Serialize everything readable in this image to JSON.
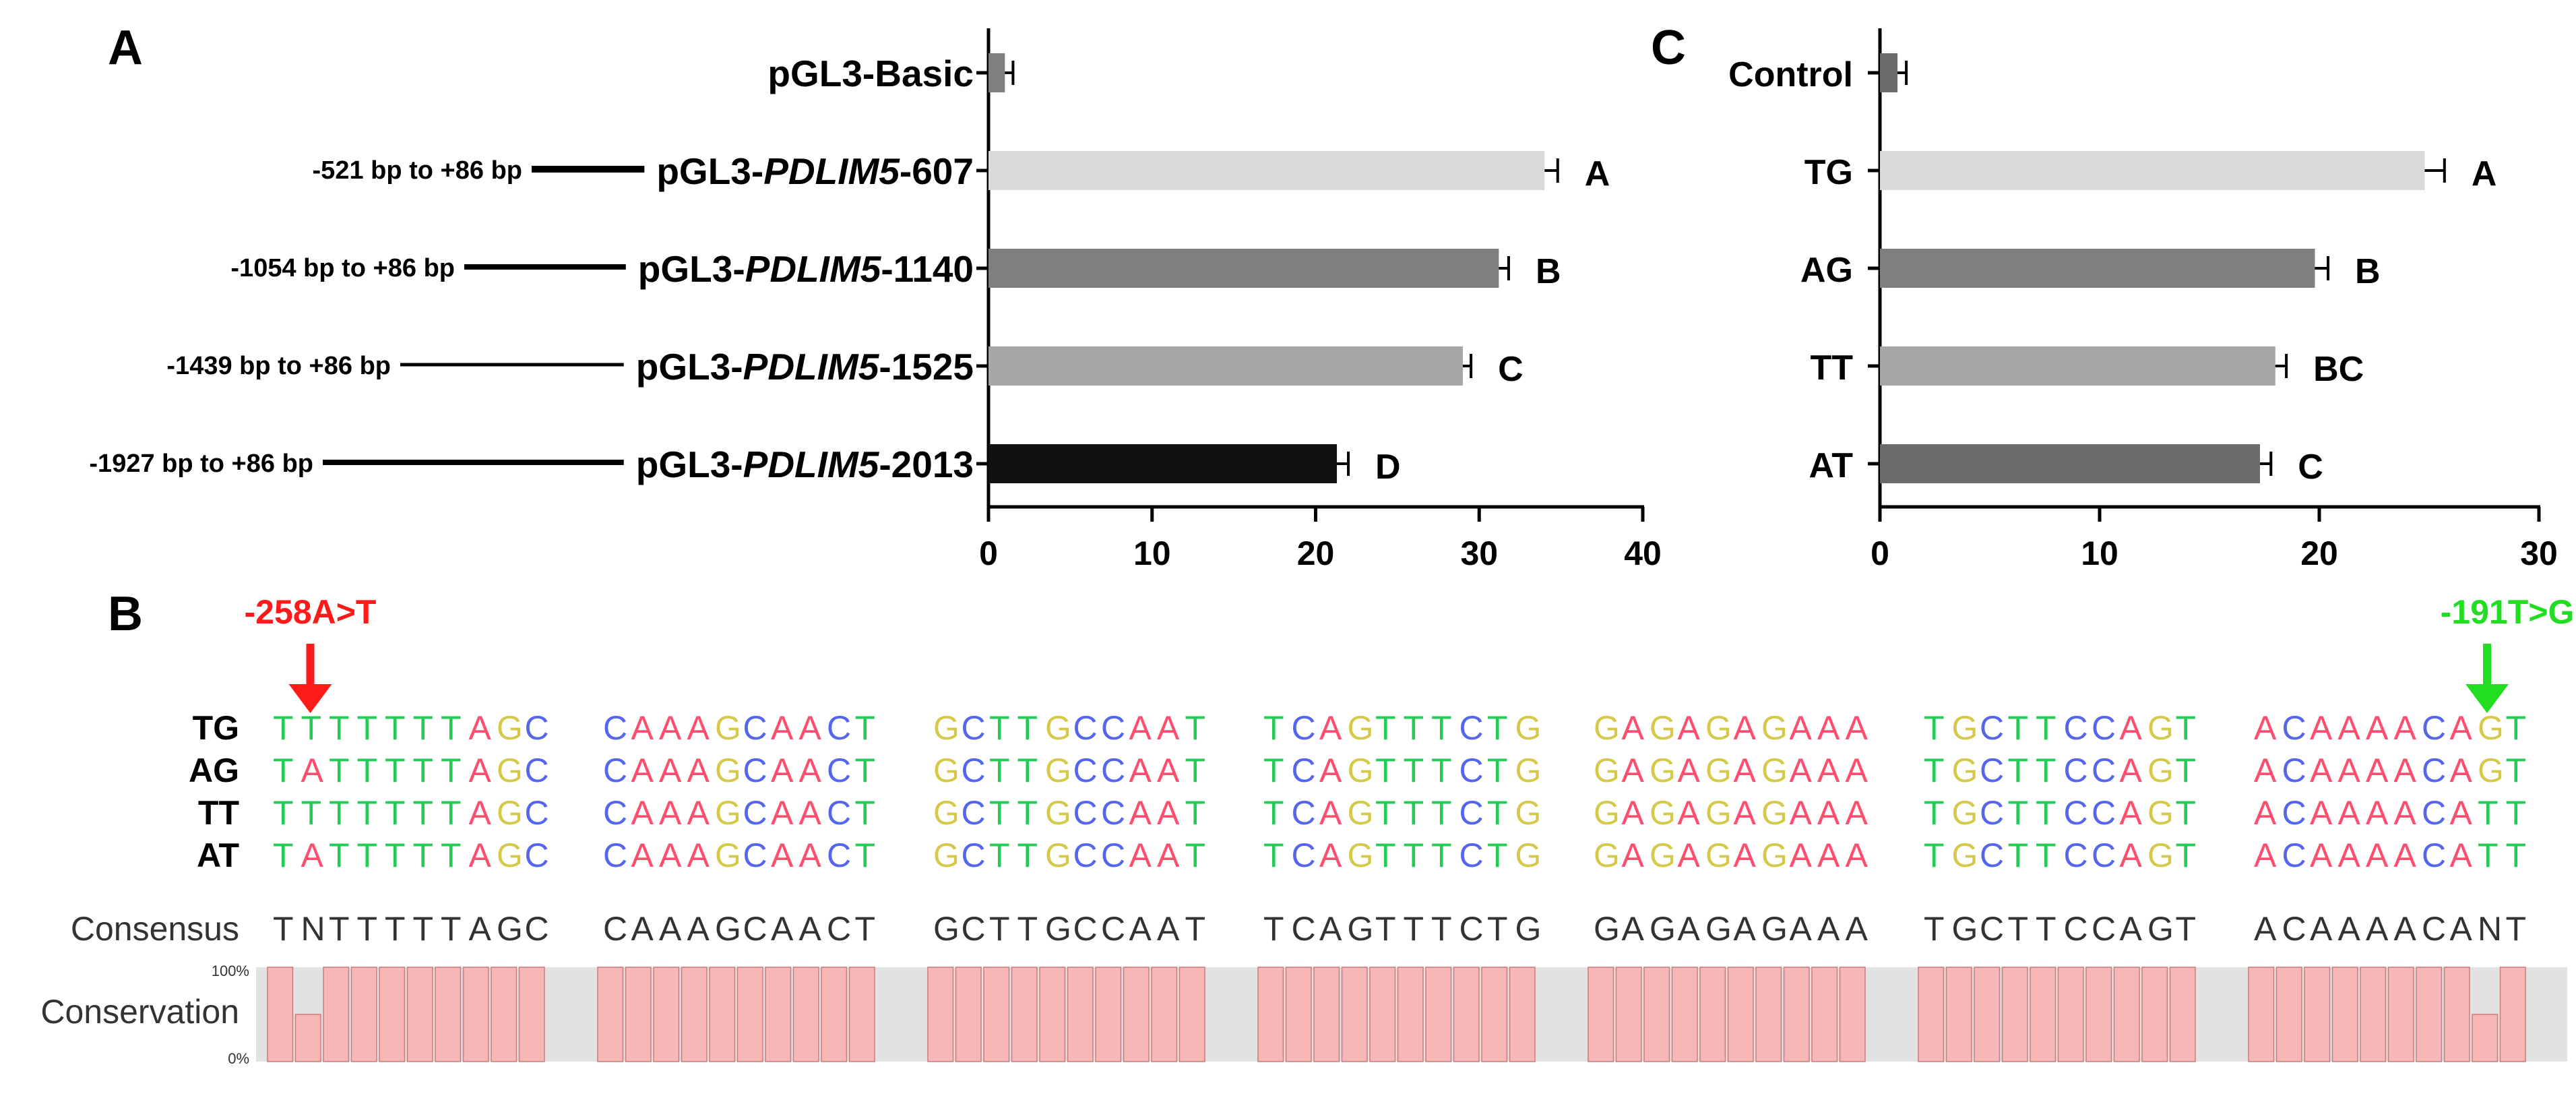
{
  "colors": {
    "black": "#000000",
    "bar_light": "#d9d9d9",
    "bar_mid": "#a6a6a6",
    "bar_dark": "#7f7f7f",
    "bar_dark2": "#6b6b6b",
    "bar_black": "#111111",
    "red": "#ff1a1a",
    "green": "#22dd22",
    "nt_A": "#ff4d6d",
    "nt_T": "#22cc55",
    "nt_G": "#d6c94a",
    "nt_C": "#5566ee",
    "conservation_fill": "#f8b7b7",
    "conservation_gap": "#e2e2e2"
  },
  "panels": {
    "A": "A",
    "B": "B",
    "C": "C"
  },
  "chart_data": [
    {
      "panel": "A",
      "type": "bar",
      "orientation": "horizontal",
      "categories": [
        "pGL3-Basic",
        "pGL3-PDLIM5-607",
        "pGL3-PDLIM5-1140",
        "pGL3-PDLIM5-1525",
        "pGL3-PDLIM5-2013"
      ],
      "category_parts": [
        {
          "pre": "pGL3-Basic",
          "ital": "",
          "post": ""
        },
        {
          "pre": "pGL3-",
          "ital": "PDLIM5",
          "post": "-607"
        },
        {
          "pre": "pGL3-",
          "ital": "PDLIM5",
          "post": "-1140"
        },
        {
          "pre": "pGL3-",
          "ital": "PDLIM5",
          "post": "-1525"
        },
        {
          "pre": "pGL3-",
          "ital": "PDLIM5",
          "post": "-2013"
        }
      ],
      "construct_ranges": [
        "",
        "-521 bp to +86 bp",
        "-1054 bp to +86 bp",
        "-1439 bp to +86 bp",
        "-1927 bp to +86 bp"
      ],
      "values": [
        1.0,
        34.0,
        31.2,
        29.0,
        21.3
      ],
      "errors": [
        0.5,
        0.8,
        0.6,
        0.5,
        0.7
      ],
      "significance": [
        "",
        "A",
        "B",
        "C",
        "D"
      ],
      "bar_colors": [
        "#7f7f7f",
        "#d9d9d9",
        "#7f7f7f",
        "#a6a6a6",
        "#111111"
      ],
      "xlim": [
        0,
        40
      ],
      "xticks": [
        0,
        10,
        20,
        30,
        40
      ]
    },
    {
      "panel": "C",
      "type": "bar",
      "orientation": "horizontal",
      "categories": [
        "Control",
        "TG",
        "AG",
        "TT",
        "AT"
      ],
      "values": [
        0.8,
        24.8,
        19.8,
        18.0,
        17.3
      ],
      "errors": [
        0.4,
        0.9,
        0.6,
        0.5,
        0.5
      ],
      "significance": [
        "",
        "A",
        "B",
        "BC",
        "C"
      ],
      "bar_colors": [
        "#6b6b6b",
        "#d9d9d9",
        "#7f7f7f",
        "#a6a6a6",
        "#6b6b6b"
      ],
      "xlim": [
        0,
        30
      ],
      "xticks": [
        0,
        10,
        20,
        30
      ]
    }
  ],
  "alignment": {
    "mutation_left": "-258A>T",
    "mutation_right": "-191T>G",
    "rows": [
      {
        "name": "TG",
        "blocks": [
          "TTTTTTTAGC",
          "CAAAGCAACT",
          "GCTTGCCAAT",
          "TCAGTTTCTG",
          "GAGAGAGAAA",
          "TGCTTCCAGT",
          "ACAAAACAGT"
        ]
      },
      {
        "name": "AG",
        "blocks": [
          "TATTTTTAGC",
          "CAAAGCAACT",
          "GCTTGCCAAT",
          "TCAGTTTCTG",
          "GAGAGAGAAA",
          "TGCTTCCAGT",
          "ACAAAACAGT"
        ]
      },
      {
        "name": "TT",
        "blocks": [
          "TTTTTTTAGC",
          "CAAAGCAACT",
          "GCTTGCCAAT",
          "TCAGTTTCTG",
          "GAGAGAGAAA",
          "TGCTTCCAGT",
          "ACAAAACATT"
        ]
      },
      {
        "name": "AT",
        "blocks": [
          "TATTTTTAGC",
          "CAAAGCAACT",
          "GCTTGCCAAT",
          "TCAGTTTCTG",
          "GAGAGAGAAA",
          "TGCTTCCAGT",
          "ACAAAACATT"
        ]
      }
    ],
    "consensus_label": "Consensus",
    "consensus_blocks": [
      "TNTTTTTAGC",
      "CAAAGCAACT",
      "GCTTGCCAAT",
      "TCAGTTTCTG",
      "GAGAGAGAAA",
      "TGCTTCCAGT",
      "ACAAAACANT"
    ],
    "conservation_label": "Conservation",
    "conservation_top": "100%",
    "conservation_bottom": "0%",
    "conservation_values": [
      [
        100,
        50,
        100,
        100,
        100,
        100,
        100,
        100,
        100,
        100
      ],
      [
        100,
        100,
        100,
        100,
        100,
        100,
        100,
        100,
        100,
        100
      ],
      [
        100,
        100,
        100,
        100,
        100,
        100,
        100,
        100,
        100,
        100
      ],
      [
        100,
        100,
        100,
        100,
        100,
        100,
        100,
        100,
        100,
        100
      ],
      [
        100,
        100,
        100,
        100,
        100,
        100,
        100,
        100,
        100,
        100
      ],
      [
        100,
        100,
        100,
        100,
        100,
        100,
        100,
        100,
        100,
        100
      ],
      [
        100,
        100,
        100,
        100,
        100,
        100,
        100,
        100,
        50,
        100
      ]
    ]
  }
}
